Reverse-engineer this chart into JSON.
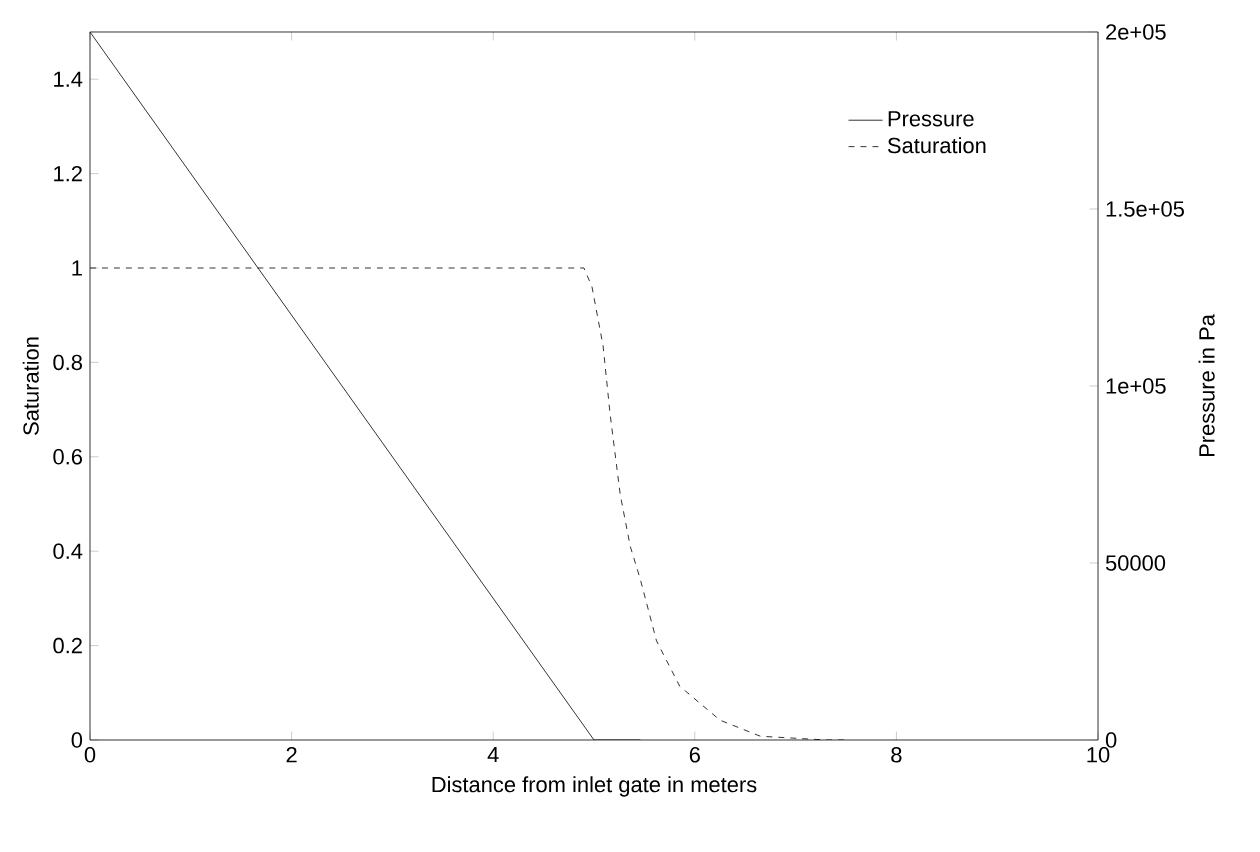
{
  "chart_data": {
    "type": "line",
    "xlabel": "Distance from inlet gate in meters",
    "ylabel": "Saturation",
    "y2label": "Pressure in Pa",
    "xlim": [
      0,
      10
    ],
    "xticks": [
      0,
      2,
      4,
      6,
      8,
      10
    ],
    "ylim": [
      0,
      1.5
    ],
    "yticks": [
      0,
      0.2,
      0.4,
      0.6,
      0.8,
      1,
      1.2,
      1.4
    ],
    "y2lim": [
      0,
      200000
    ],
    "y2ticks": [
      0,
      50000,
      {
        "value": 100000,
        "label": "1e+05"
      },
      {
        "value": 150000,
        "label": "1.5e+05"
      },
      {
        "value": 200000,
        "label": "2e+05"
      }
    ],
    "legend": "top right",
    "series": [
      {
        "name": "Pressure",
        "color": "#000000",
        "line_style": "solid",
        "axis": "y2",
        "x": [
          0,
          5,
          5.46
        ],
        "values": [
          200000,
          0,
          0
        ]
      },
      {
        "name": "Saturation",
        "color": "#000000",
        "line_style": "dashed",
        "x": [
          0,
          4.9,
          4.98,
          5.09,
          5.16,
          5.26,
          5.36,
          5.46,
          5.62,
          5.85,
          6.25,
          6.65,
          7.3,
          7.5
        ],
        "values": [
          1,
          1,
          0.96,
          0.835,
          0.69,
          0.52,
          0.41,
          0.34,
          0.21,
          0.114,
          0.042,
          0.008,
          0,
          0
        ]
      }
    ]
  }
}
